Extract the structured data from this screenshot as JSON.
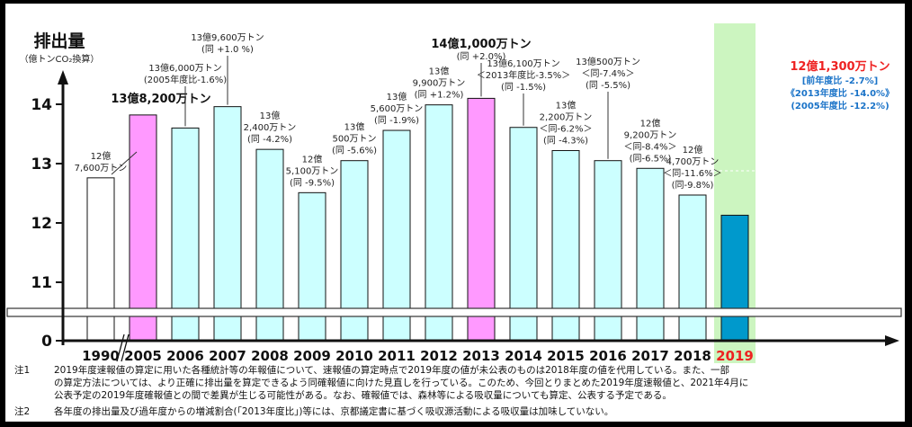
{
  "chart_data": {
    "type": "bar",
    "title": "排出量",
    "ylabel": "（億トンCO₂換算）",
    "ylim": [
      10.5,
      14.5
    ],
    "yticks": [
      "0",
      "11",
      "12",
      "13",
      "14"
    ],
    "axis_break": true,
    "categories": [
      "1990",
      "2005",
      "2006",
      "2007",
      "2008",
      "2009",
      "2010",
      "2011",
      "2012",
      "2013",
      "2014",
      "2015",
      "2016",
      "2017",
      "2018",
      "2019"
    ],
    "values": [
      12.76,
      13.82,
      13.6,
      13.96,
      13.24,
      12.51,
      13.05,
      13.56,
      13.99,
      14.1,
      13.61,
      13.22,
      13.05,
      12.92,
      12.47,
      12.13
    ],
    "colors": [
      "#ffffff",
      "#ff99ff",
      "#ccffff",
      "#ccffff",
      "#ccffff",
      "#ccffff",
      "#ccffff",
      "#ccffff",
      "#ccffff",
      "#ff99ff",
      "#ccffff",
      "#ccffff",
      "#ccffff",
      "#ccffff",
      "#ccffff",
      "#0099cc"
    ],
    "highlight_category": "2019",
    "highlight_color": "#ee2222",
    "highlight_bg": "#ccf5c0",
    "annotations": [
      {
        "category": "1990",
        "lines": [
          "12億",
          "7,600万トン"
        ]
      },
      {
        "category": "2005",
        "lines": [
          "13億8,200万トン"
        ],
        "style": "bold"
      },
      {
        "category": "2006",
        "lines": [
          "13億6,000万トン",
          "(2005年度比-1.6%)"
        ]
      },
      {
        "category": "2007",
        "lines": [
          "13億9,600万トン",
          "(同 +1.0 %)"
        ]
      },
      {
        "category": "2008",
        "lines": [
          "13億",
          "2,400万トン",
          "(同 -4.2%)"
        ]
      },
      {
        "category": "2009",
        "lines": [
          "12億",
          "5,100万トン",
          "(同 -9.5%)"
        ]
      },
      {
        "category": "2010",
        "lines": [
          "13億",
          "500万トン",
          "(同 -5.6%)"
        ]
      },
      {
        "category": "2011",
        "lines": [
          "13億",
          "5,600万トン",
          "(同 -1.9%)"
        ]
      },
      {
        "category": "2012",
        "lines": [
          "13億",
          "9,900万トン",
          "(同 +1.2%)"
        ]
      },
      {
        "category": "2013",
        "lines": [
          "14億1,000万トン",
          "(同 +2.0%)"
        ],
        "style": "bold"
      },
      {
        "category": "2014",
        "lines": [
          "13億6,100万トン",
          "＜2013年度比-3.5%＞",
          "(同 -1.5%)"
        ]
      },
      {
        "category": "2015",
        "lines": [
          "13億",
          "2,200万トン",
          "＜同-6.2%＞",
          "(同 -4.3%)"
        ]
      },
      {
        "category": "2016",
        "lines": [
          "13億500万トン",
          "＜同-7.4%＞",
          "(同 -5.5%)"
        ]
      },
      {
        "category": "2017",
        "lines": [
          "12億",
          "9,200万トン",
          "＜同-8.4%＞",
          "(同-6.5%)"
        ]
      },
      {
        "category": "2018",
        "lines": [
          "12億",
          "4,700万トン",
          "＜同-11.6%＞",
          "(同-9.8%)"
        ]
      }
    ],
    "latest": {
      "value": "12億1,300万トン",
      "change1": "[前年度比 -2.7%]",
      "change2": "《2013年度比 -14.0%》",
      "change3": "(2005年度比 -12.2%)"
    }
  },
  "notes": [
    {
      "number": "注1",
      "lines": [
        "2019年度速報値の算定に用いた各種統計等の年報値について、速報値の算定時点で2019年度の値が未公表のものは2018年度の値を代用している。また、一部",
        "の算定方法については、より正確に排出量を算定できるよう同確報値に向けた見直しを行っている。このため、今回とりまとめた2019年度速報値と、2021年4月に",
        "公表予定の2019年度確報値との間で差異が生じる可能性がある。なお、確報値では、森林等による吸収量についても算定、公表する予定である。"
      ]
    },
    {
      "number": "注2",
      "lines": [
        "各年度の排出量及び過年度からの増減割合(「2013年度比」)等には、京都議定書に基づく吸収源活動による吸収量は加味していない。"
      ]
    }
  ]
}
